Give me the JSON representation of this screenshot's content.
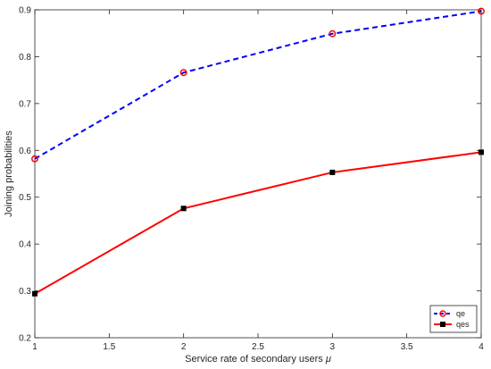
{
  "chart_data": {
    "type": "line",
    "title": "",
    "xlabel": "Service rate of secondary users",
    "xlabel_symbol": "μ",
    "ylabel": "Joining probabilities",
    "xlim": [
      1,
      4
    ],
    "ylim": [
      0.2,
      0.9
    ],
    "xticks": [
      "1",
      "1.5",
      "2",
      "2.5",
      "3",
      "3.5",
      "4"
    ],
    "yticks": [
      "0.2",
      "0.3",
      "0.4",
      "0.5",
      "0.6",
      "0.7",
      "0.8",
      "0.9"
    ],
    "grid": false,
    "legend_position": "bottom-right",
    "x": [
      1,
      2,
      3,
      4
    ],
    "series": [
      {
        "name": "qe",
        "values": [
          0.582,
          0.766,
          0.849,
          0.897
        ],
        "line_color": "#0000ff",
        "line_style": "dashed",
        "marker": "circle",
        "marker_color": "#ff0000"
      },
      {
        "name": "qes",
        "values": [
          0.294,
          0.476,
          0.553,
          0.596
        ],
        "line_color": "#ff0000",
        "line_style": "solid",
        "marker": "square",
        "marker_color": "#000000"
      }
    ]
  }
}
